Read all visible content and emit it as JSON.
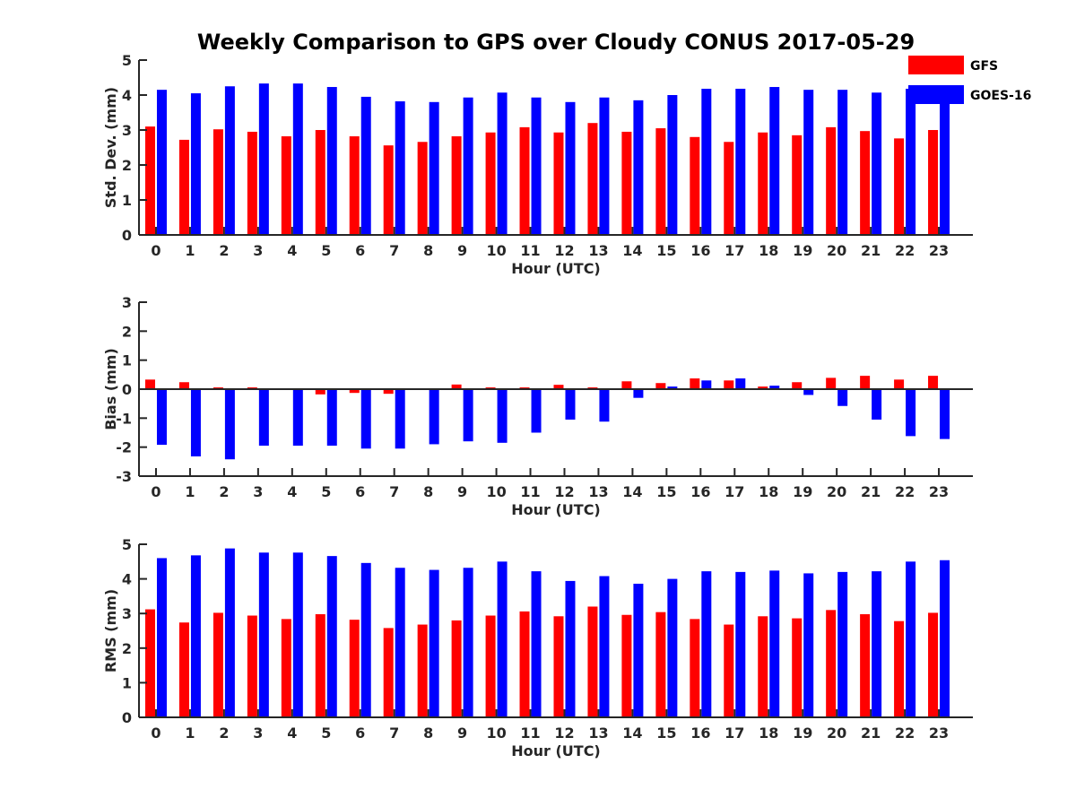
{
  "title": "Weekly Comparison to GPS over Cloudy CONUS 2017-05-29",
  "colors": {
    "GFS": "#ff0000",
    "GOES-16": "#0000ff"
  },
  "legend": {
    "placement": "top-right",
    "items": [
      "GFS",
      "GOES-16"
    ]
  },
  "chart_data": [
    {
      "type": "bar",
      "xlabel": "Hour (UTC)",
      "ylabel": "Std. Dev. (mm)",
      "ylim": [
        0,
        5
      ],
      "yticks": [
        0,
        1,
        2,
        3,
        4,
        5
      ],
      "grid": false,
      "categories": [
        "0",
        "1",
        "2",
        "3",
        "4",
        "5",
        "6",
        "7",
        "8",
        "9",
        "10",
        "11",
        "12",
        "13",
        "14",
        "15",
        "16",
        "17",
        "18",
        "19",
        "20",
        "21",
        "22",
        "23"
      ],
      "series": [
        {
          "name": "GFS",
          "values": [
            3.1,
            2.72,
            3.02,
            2.95,
            2.82,
            3.0,
            2.82,
            2.56,
            2.66,
            2.82,
            2.93,
            3.08,
            2.93,
            3.2,
            2.95,
            3.05,
            2.8,
            2.66,
            2.93,
            2.85,
            3.08,
            2.97,
            2.76,
            3.0
          ]
        },
        {
          "name": "GOES-16",
          "values": [
            4.15,
            4.05,
            4.25,
            4.33,
            4.33,
            4.23,
            3.95,
            3.82,
            3.8,
            3.93,
            4.07,
            3.93,
            3.8,
            3.93,
            3.85,
            4.0,
            4.18,
            4.18,
            4.23,
            4.15,
            4.15,
            4.07,
            4.18,
            4.18
          ]
        }
      ]
    },
    {
      "type": "bar",
      "xlabel": "Hour (UTC)",
      "ylabel": "Bias (mm)",
      "ylim": [
        -3,
        3
      ],
      "yticks": [
        -3,
        -2,
        -1,
        0,
        1,
        2,
        3
      ],
      "grid": false,
      "categories": [
        "0",
        "1",
        "2",
        "3",
        "4",
        "5",
        "6",
        "7",
        "8",
        "9",
        "10",
        "11",
        "12",
        "13",
        "14",
        "15",
        "16",
        "17",
        "18",
        "19",
        "20",
        "21",
        "22",
        "23"
      ],
      "series": [
        {
          "name": "GFS",
          "values": [
            0.33,
            0.24,
            0.06,
            0.06,
            0.03,
            -0.18,
            -0.13,
            -0.16,
            -0.03,
            0.16,
            0.06,
            0.06,
            0.15,
            0.06,
            0.27,
            0.21,
            0.37,
            0.3,
            0.09,
            0.24,
            0.39,
            0.46,
            0.33,
            0.46
          ]
        },
        {
          "name": "GOES-16",
          "values": [
            -1.92,
            -2.32,
            -2.42,
            -1.95,
            -1.95,
            -1.95,
            -2.05,
            -2.05,
            -1.9,
            -1.8,
            -1.85,
            -1.5,
            -1.05,
            -1.12,
            -0.3,
            0.09,
            0.3,
            0.37,
            0.12,
            -0.2,
            -0.58,
            -1.05,
            -1.62,
            -1.72
          ]
        }
      ]
    },
    {
      "type": "bar",
      "xlabel": "Hour (UTC)",
      "ylabel": "RMS (mm)",
      "ylim": [
        0,
        5
      ],
      "yticks": [
        0,
        1,
        2,
        3,
        4,
        5
      ],
      "grid": false,
      "categories": [
        "0",
        "1",
        "2",
        "3",
        "4",
        "5",
        "6",
        "7",
        "8",
        "9",
        "10",
        "11",
        "12",
        "13",
        "14",
        "15",
        "16",
        "17",
        "18",
        "19",
        "20",
        "21",
        "22",
        "23"
      ],
      "series": [
        {
          "name": "GFS",
          "values": [
            3.12,
            2.74,
            3.02,
            2.94,
            2.84,
            2.98,
            2.82,
            2.58,
            2.68,
            2.8,
            2.94,
            3.06,
            2.92,
            3.2,
            2.96,
            3.04,
            2.84,
            2.68,
            2.92,
            2.86,
            3.1,
            2.98,
            2.78,
            3.02
          ]
        },
        {
          "name": "GOES-16",
          "values": [
            4.6,
            4.68,
            4.88,
            4.76,
            4.76,
            4.66,
            4.46,
            4.32,
            4.26,
            4.32,
            4.5,
            4.22,
            3.94,
            4.08,
            3.86,
            4.0,
            4.22,
            4.2,
            4.24,
            4.16,
            4.2,
            4.22,
            4.5,
            4.54
          ]
        }
      ]
    }
  ]
}
